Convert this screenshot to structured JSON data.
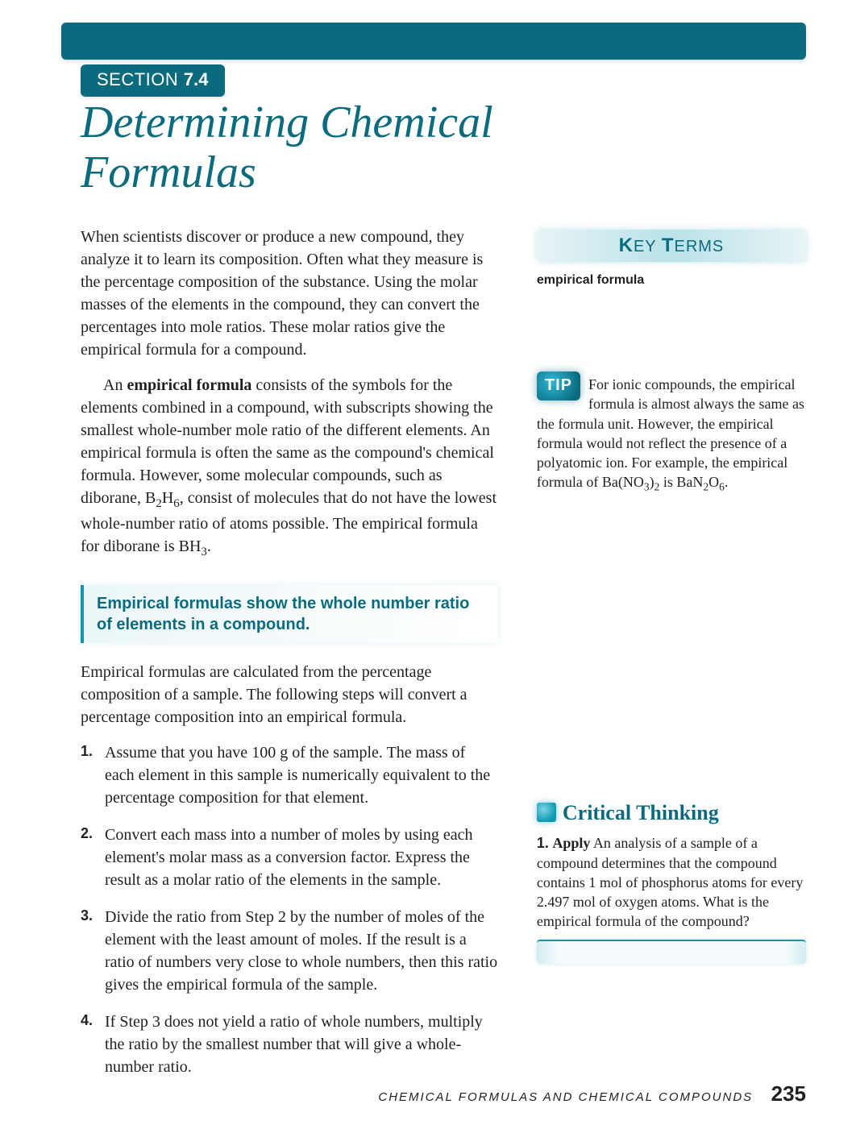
{
  "colors": {
    "primary": "#0a6b7f",
    "accent": "#0a99b0",
    "text": "#231f20",
    "background": "#ffffff",
    "sidebar_gradient_mid": "#bde4ea",
    "sidebar_gradient_edge": "#e8f4f6"
  },
  "typography": {
    "title_fontsize": 56,
    "body_fontsize": 20,
    "sidebar_fontsize": 18,
    "section_badge_fontsize": 22,
    "subhead_fontsize": 20,
    "ct_title_fontsize": 26,
    "footer_text_fontsize": 15,
    "page_num_fontsize": 26
  },
  "section": {
    "label": "SECTION ",
    "number": "7.4"
  },
  "title_line1": "Determining Chemical",
  "title_line2": "Formulas",
  "paragraphs": {
    "p1": "When scientists discover or produce a new compound, they analyze it to learn its composition. Often what they measure is the percentage composition of the substance. Using the molar masses of the elements in the compound, they can convert the percentages into mole ratios. These molar ratios give the empirical formula for a compound.",
    "p2_pre": "An ",
    "p2_bold": "empirical formula",
    "p2_post": " consists of the symbols for the elements combined in a compound, with subscripts showing the smallest whole-number mole ratio of the different elements. An empirical formula is often the same as the compound's chemical formula. However, some molecular compounds, such as diborane, B",
    "p2_sub1": "2",
    "p2_mid": "H",
    "p2_sub2": "6",
    "p2_tail": ", consist of molecules that do not have the lowest whole-number ratio of atoms possible. The empirical formula for diborane is BH",
    "p2_sub3": "3",
    "p2_end": "."
  },
  "subhead": "Empirical formulas show the whole number ratio of elements in a compound.",
  "after_subhead": "Empirical formulas are calculated from the percentage composition of a sample. The following steps will convert a percentage composition into an empirical formula.",
  "steps": {
    "s1_num": "1.",
    "s1": "Assume that you have 100 g of the sample. The mass of each element in this sample is numerically equivalent to the percentage composition for that element.",
    "s2_num": "2.",
    "s2": "Convert each mass into a number of moles by using each element's molar mass as a conversion factor. Express the result as a molar ratio of the elements in the sample.",
    "s3_num": "3.",
    "s3": "Divide the ratio from Step 2 by the number of moles of the element with the least amount of moles. If the result is a ratio of numbers very close to whole numbers, then this ratio gives the empirical formula of the sample.",
    "s4_num": "4.",
    "s4": "If Step 3 does not yield a ratio of whole numbers, multiply the ratio by the smallest number that will give a whole-number ratio."
  },
  "sidebar": {
    "key_terms_title_k": "K",
    "key_terms_title_ey": "EY ",
    "key_terms_title_t": "T",
    "key_terms_title_erms": "ERMS",
    "terms": {
      "t1": "empirical formula"
    },
    "tip_label": "TIP",
    "tip_pre": "For ionic compounds, the empirical formula is almost always the same as the formula unit. However, the empirical formula would not reflect the presence of a polyatomic ion. For example, the empirical formula of Ba(NO",
    "tip_s1": "3",
    "tip_mid1": ")",
    "tip_s2": "2",
    "tip_mid2": " is BaN",
    "tip_s3": "2",
    "tip_mid3": "O",
    "tip_s4": "6",
    "tip_end": ".",
    "ct_title": "Critical Thinking",
    "ct_num": "1.",
    "ct_verb": "Apply",
    "ct_text": " An analysis of a sample of a compound determines that the compound contains 1 mol of phosphorus atoms for every 2.497 mol of oxygen atoms. What is the empirical formula of the compound?"
  },
  "footer": {
    "text": "CHEMICAL FORMULAS AND CHEMICAL COMPOUNDS",
    "page": "235"
  }
}
